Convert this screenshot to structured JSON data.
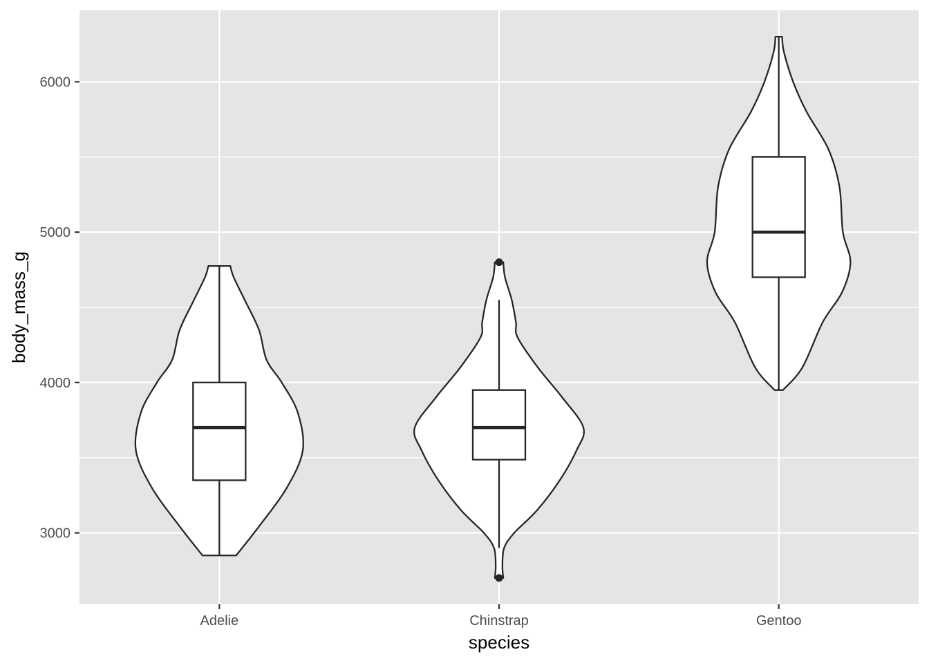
{
  "chart_data": {
    "type": "violin",
    "title": "",
    "xlabel": "species",
    "ylabel": "body_mass_g",
    "ylim": [
      2525,
      6475
    ],
    "y_ticks": [
      3000,
      4000,
      5000,
      6000
    ],
    "y_minor_ticks": [
      3500,
      4500,
      5500
    ],
    "categories": [
      "Adelie",
      "Chinstrap",
      "Gentoo"
    ],
    "grid": true,
    "legend": "none",
    "colors": {
      "panel": "#e5e5e5",
      "grid": "#ffffff",
      "fill": "#ffffff",
      "stroke": "#262626",
      "tick_text": "#4d4d4d"
    },
    "series": [
      {
        "name": "Adelie",
        "min": 2850,
        "q1": 3350,
        "median": 3700,
        "q3": 4000,
        "max": 4775,
        "whisker_low": 2850,
        "whisker_high": 4775,
        "outliers": [],
        "density": [
          [
            2850,
            0.2
          ],
          [
            3050,
            0.48
          ],
          [
            3300,
            0.8
          ],
          [
            3550,
            0.99
          ],
          [
            3800,
            0.93
          ],
          [
            4000,
            0.74
          ],
          [
            4150,
            0.56
          ],
          [
            4350,
            0.47
          ],
          [
            4550,
            0.3
          ],
          [
            4700,
            0.17
          ],
          [
            4775,
            0.13
          ]
        ]
      },
      {
        "name": "Chinstrap",
        "min": 2700,
        "q1": 3487,
        "median": 3700,
        "q3": 3950,
        "max": 4800,
        "whisker_low": 2900,
        "whisker_high": 4550,
        "outliers": [
          2700,
          4800
        ],
        "density": [
          [
            2700,
            0.05
          ],
          [
            2780,
            0.04
          ],
          [
            2900,
            0.06
          ],
          [
            3000,
            0.18
          ],
          [
            3150,
            0.45
          ],
          [
            3350,
            0.72
          ],
          [
            3550,
            0.92
          ],
          [
            3700,
            1.0
          ],
          [
            3900,
            0.75
          ],
          [
            4100,
            0.46
          ],
          [
            4300,
            0.22
          ],
          [
            4400,
            0.2
          ],
          [
            4550,
            0.15
          ],
          [
            4700,
            0.07
          ],
          [
            4800,
            0.05
          ]
        ]
      },
      {
        "name": "Gentoo",
        "min": 3950,
        "q1": 4700,
        "median": 5000,
        "q3": 5500,
        "max": 6300,
        "whisker_low": 3950,
        "whisker_high": 6300,
        "outliers": [],
        "density": [
          [
            3950,
            0.05
          ],
          [
            4100,
            0.28
          ],
          [
            4400,
            0.52
          ],
          [
            4600,
            0.75
          ],
          [
            4800,
            0.85
          ],
          [
            5000,
            0.76
          ],
          [
            5300,
            0.72
          ],
          [
            5550,
            0.59
          ],
          [
            5800,
            0.33
          ],
          [
            6000,
            0.17
          ],
          [
            6200,
            0.06
          ],
          [
            6300,
            0.04
          ]
        ]
      }
    ]
  }
}
